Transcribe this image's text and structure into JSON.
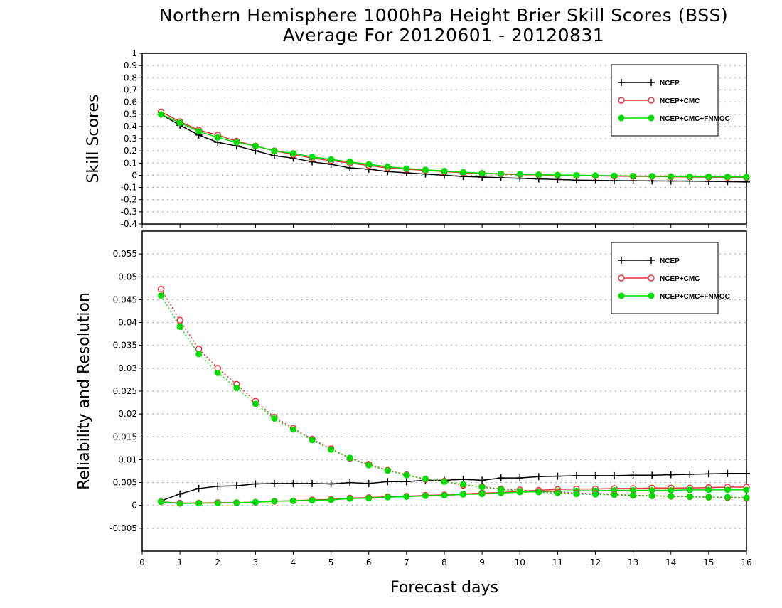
{
  "title_line1": "Northern Hemisphere 1000hPa Height Brier Skill Scores (BSS)",
  "title_line2": "Average For 20120601 - 20120831",
  "xlabel": "Forecast days",
  "colors": {
    "ncep": "#000000",
    "ncep_cmc": "#e8333c",
    "ncep_cmc_fnmoc": "#00dd00",
    "grid": "#a0a0a0"
  },
  "chart_data": [
    {
      "type": "line",
      "ylabel": "Skill Scores",
      "ylim": [
        -0.4,
        1
      ],
      "xlim": [
        0,
        16
      ],
      "grid": true,
      "legend_position": "top-right",
      "x_ticks": [
        "0",
        "1",
        "2",
        "3",
        "4",
        "5",
        "6",
        "7",
        "8",
        "9",
        "10",
        "11",
        "12",
        "13",
        "14",
        "15",
        "16"
      ],
      "y_ticks": [
        "1",
        "0.9",
        "0.8",
        "0.7",
        "0.6",
        "0.5",
        "0.4",
        "0.3",
        "0.2",
        "0.1",
        "0",
        "-0.1",
        "-0.2",
        "-0.3",
        "-0.4"
      ],
      "x": [
        0.5,
        1,
        1.5,
        2,
        2.5,
        3,
        3.5,
        4,
        4.5,
        5,
        5.5,
        6,
        6.5,
        7,
        7.5,
        8,
        8.5,
        9,
        9.5,
        10,
        10.5,
        11,
        11.5,
        12,
        12.5,
        13,
        13.5,
        14,
        14.5,
        15,
        15.5,
        16
      ],
      "series": [
        {
          "name": "NCEP",
          "marker": "plus",
          "values": [
            0.5,
            0.41,
            0.33,
            0.27,
            0.24,
            0.2,
            0.16,
            0.14,
            0.11,
            0.09,
            0.06,
            0.05,
            0.03,
            0.02,
            0.01,
            0.0,
            -0.01,
            -0.015,
            -0.02,
            -0.025,
            -0.03,
            -0.035,
            -0.04,
            -0.042,
            -0.044,
            -0.045,
            -0.046,
            -0.047,
            -0.048,
            -0.05,
            -0.052,
            -0.055
          ]
        },
        {
          "name": "NCEP+CMC",
          "marker": "circle",
          "values": [
            0.52,
            0.44,
            0.37,
            0.33,
            0.28,
            0.24,
            0.2,
            0.17,
            0.14,
            0.12,
            0.1,
            0.08,
            0.06,
            0.05,
            0.04,
            0.03,
            0.02,
            0.015,
            0.01,
            0.005,
            0.003,
            0.0,
            -0.003,
            -0.005,
            -0.007,
            -0.009,
            -0.01,
            -0.012,
            -0.014,
            -0.016,
            -0.017,
            -0.018
          ]
        },
        {
          "name": "NCEP+CMC+FNMOC",
          "marker": "dot",
          "values": [
            0.5,
            0.43,
            0.36,
            0.31,
            0.27,
            0.24,
            0.2,
            0.18,
            0.15,
            0.13,
            0.11,
            0.09,
            0.07,
            0.055,
            0.045,
            0.035,
            0.025,
            0.018,
            0.012,
            0.008,
            0.005,
            0.002,
            0.0,
            -0.002,
            -0.004,
            -0.006,
            -0.008,
            -0.01,
            -0.011,
            -0.012,
            -0.013,
            -0.014
          ]
        }
      ]
    },
    {
      "type": "line",
      "ylabel": "Reliability and Resolution",
      "ylim": [
        -0.01,
        0.06
      ],
      "xlim": [
        0,
        16
      ],
      "grid": true,
      "legend_position": "top-right",
      "x_ticks": [
        "0",
        "1",
        "2",
        "3",
        "4",
        "5",
        "6",
        "7",
        "8",
        "9",
        "10",
        "11",
        "12",
        "13",
        "14",
        "15",
        "16"
      ],
      "y_ticks": [
        "0.055",
        "0.05",
        "0.045",
        "0.04",
        "0.035",
        "0.03",
        "0.025",
        "0.02",
        "0.015",
        "0.01",
        "0.005",
        "0",
        "-0.005"
      ],
      "y_tick_values": [
        0.055,
        0.05,
        0.045,
        0.04,
        0.035,
        0.03,
        0.025,
        0.02,
        0.015,
        0.01,
        0.005,
        0,
        -0.005
      ],
      "x": [
        0.5,
        1,
        1.5,
        2,
        2.5,
        3,
        3.5,
        4,
        4.5,
        5,
        5.5,
        6,
        6.5,
        7,
        7.5,
        8,
        8.5,
        9,
        9.5,
        10,
        10.5,
        11,
        11.5,
        12,
        12.5,
        13,
        13.5,
        14,
        14.5,
        15,
        15.5,
        16
      ],
      "series": [
        {
          "name": "NCEP",
          "marker": "plus",
          "style": "solid",
          "values": [
            0.001,
            0.0025,
            0.0037,
            0.0042,
            0.0043,
            0.0047,
            0.0048,
            0.0048,
            0.0048,
            0.0047,
            0.005,
            0.0048,
            0.0052,
            0.0052,
            0.0055,
            0.0055,
            0.0057,
            0.0055,
            0.006,
            0.006,
            0.0063,
            0.0064,
            0.0065,
            0.0065,
            0.0065,
            0.0066,
            0.0066,
            0.0067,
            0.0068,
            0.0069,
            0.007,
            0.007
          ]
        },
        {
          "name": "NCEP+CMC",
          "marker": "circle",
          "style": "solid",
          "values": [
            0.0008,
            0.0005,
            0.0005,
            0.0006,
            0.0006,
            0.0007,
            0.0009,
            0.001,
            0.0012,
            0.0013,
            0.0016,
            0.0017,
            0.0019,
            0.002,
            0.0022,
            0.0023,
            0.0025,
            0.0027,
            0.0028,
            0.0031,
            0.0033,
            0.0035,
            0.0036,
            0.0036,
            0.0037,
            0.0037,
            0.0038,
            0.0038,
            0.0038,
            0.0039,
            0.004,
            0.004
          ]
        },
        {
          "name": "NCEP+CMC+FNMOC",
          "marker": "dot",
          "style": "solid",
          "values": [
            0.0008,
            0.0004,
            0.0005,
            0.0005,
            0.0006,
            0.0007,
            0.0009,
            0.001,
            0.0011,
            0.0012,
            0.0015,
            0.0016,
            0.0018,
            0.0019,
            0.0021,
            0.0022,
            0.0024,
            0.0025,
            0.0027,
            0.0029,
            0.003,
            0.0031,
            0.0032,
            0.0032,
            0.0033,
            0.0033,
            0.0033,
            0.0033,
            0.0034,
            0.0034,
            0.0034,
            0.0034
          ]
        },
        {
          "name": "NCEP+CMC",
          "marker": "circle",
          "style": "dotted",
          "values": [
            0.0473,
            0.0405,
            0.0342,
            0.03,
            0.0265,
            0.0228,
            0.0193,
            0.0169,
            0.0145,
            0.0124,
            0.0103,
            0.009,
            0.0077,
            0.0067,
            0.0057,
            0.0053,
            0.0044,
            0.0041,
            0.0036,
            0.0034,
            0.003,
            0.0029,
            0.0027,
            0.0026,
            0.0024,
            0.0022,
            0.0021,
            0.002,
            0.0019,
            0.0018,
            0.0017,
            0.0016
          ]
        },
        {
          "name": "NCEP+CMC+FNMOC",
          "marker": "dot",
          "style": "dotted",
          "values": [
            0.0459,
            0.0391,
            0.0331,
            0.029,
            0.0257,
            0.0222,
            0.019,
            0.0166,
            0.0143,
            0.0122,
            0.0104,
            0.0088,
            0.0076,
            0.0066,
            0.0058,
            0.0052,
            0.0046,
            0.004,
            0.0035,
            0.0031,
            0.0029,
            0.0027,
            0.0025,
            0.0024,
            0.0023,
            0.0022,
            0.0021,
            0.002,
            0.0019,
            0.0018,
            0.0018,
            0.0017
          ]
        }
      ]
    }
  ],
  "legend_labels": [
    "NCEP",
    "NCEP+CMC",
    "NCEP+CMC+FNMOC"
  ]
}
